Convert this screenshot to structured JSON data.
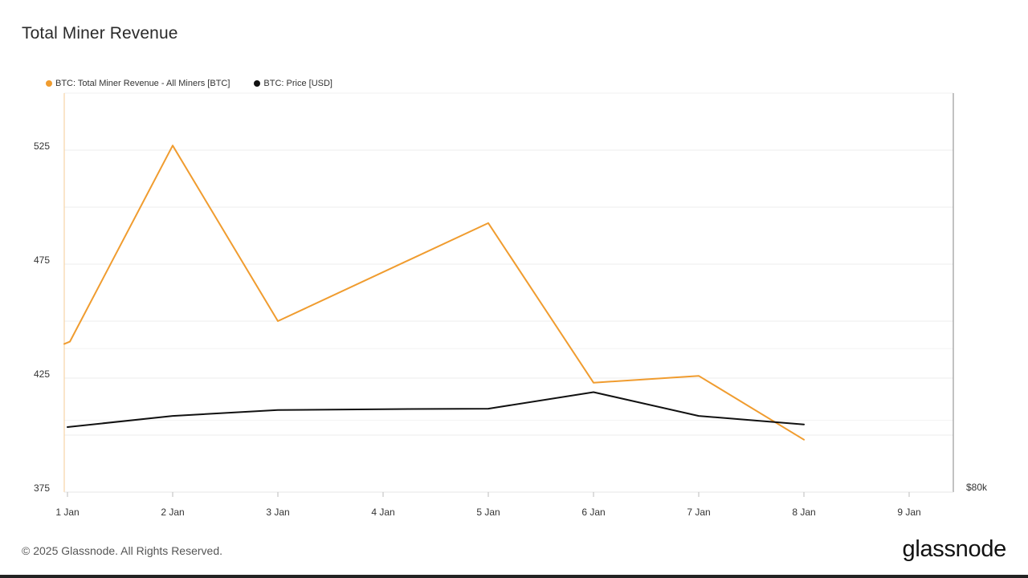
{
  "chart_data": {
    "type": "line",
    "title": "Total Miner Revenue",
    "x": [
      "1 Jan",
      "2 Jan",
      "3 Jan",
      "4 Jan",
      "5 Jan",
      "6 Jan",
      "7 Jan",
      "8 Jan",
      "9 Jan"
    ],
    "series": [
      {
        "name": "BTC: Total Miner Revenue - All Miners [BTC]",
        "color": "#f09c2f",
        "axis": "left",
        "points": [
          {
            "x": "1 Jan",
            "y": 440
          },
          {
            "x": "1 Jan",
            "y": 441
          },
          {
            "x": "2 Jan",
            "y": 527
          },
          {
            "x": "3 Jan",
            "y": 450
          },
          {
            "x": "5 Jan",
            "y": 493
          },
          {
            "x": "6 Jan",
            "y": 423
          },
          {
            "x": "7 Jan",
            "y": 426
          },
          {
            "x": "8 Jan",
            "y": 398
          }
        ]
      },
      {
        "name": "BTC: Price [USD]",
        "color": "#111111",
        "axis": "right",
        "points": [
          {
            "x": "1 Jan",
            "y": 94500
          },
          {
            "x": "2 Jan",
            "y": 97000
          },
          {
            "x": "3 Jan",
            "y": 98300
          },
          {
            "x": "4 Jan",
            "y": 98500
          },
          {
            "x": "5 Jan",
            "y": 98600
          },
          {
            "x": "6 Jan",
            "y": 102300
          },
          {
            "x": "7 Jan",
            "y": 97000
          },
          {
            "x": "8 Jan",
            "y": 95100
          }
        ]
      }
    ],
    "y_left": {
      "ticks": [
        375,
        425,
        475,
        525
      ],
      "tick_labels": [
        "375",
        "425",
        "475",
        "525"
      ],
      "range": [
        375,
        550
      ]
    },
    "y_right": {
      "ticks": [
        80000
      ],
      "tick_labels": [
        "$80k"
      ],
      "range": [
        80000,
        169000
      ]
    },
    "grid": true,
    "legend": "top-left"
  },
  "footer": {
    "copyright": "© 2025 Glassnode. All Rights Reserved.",
    "brand": "glassnode"
  }
}
